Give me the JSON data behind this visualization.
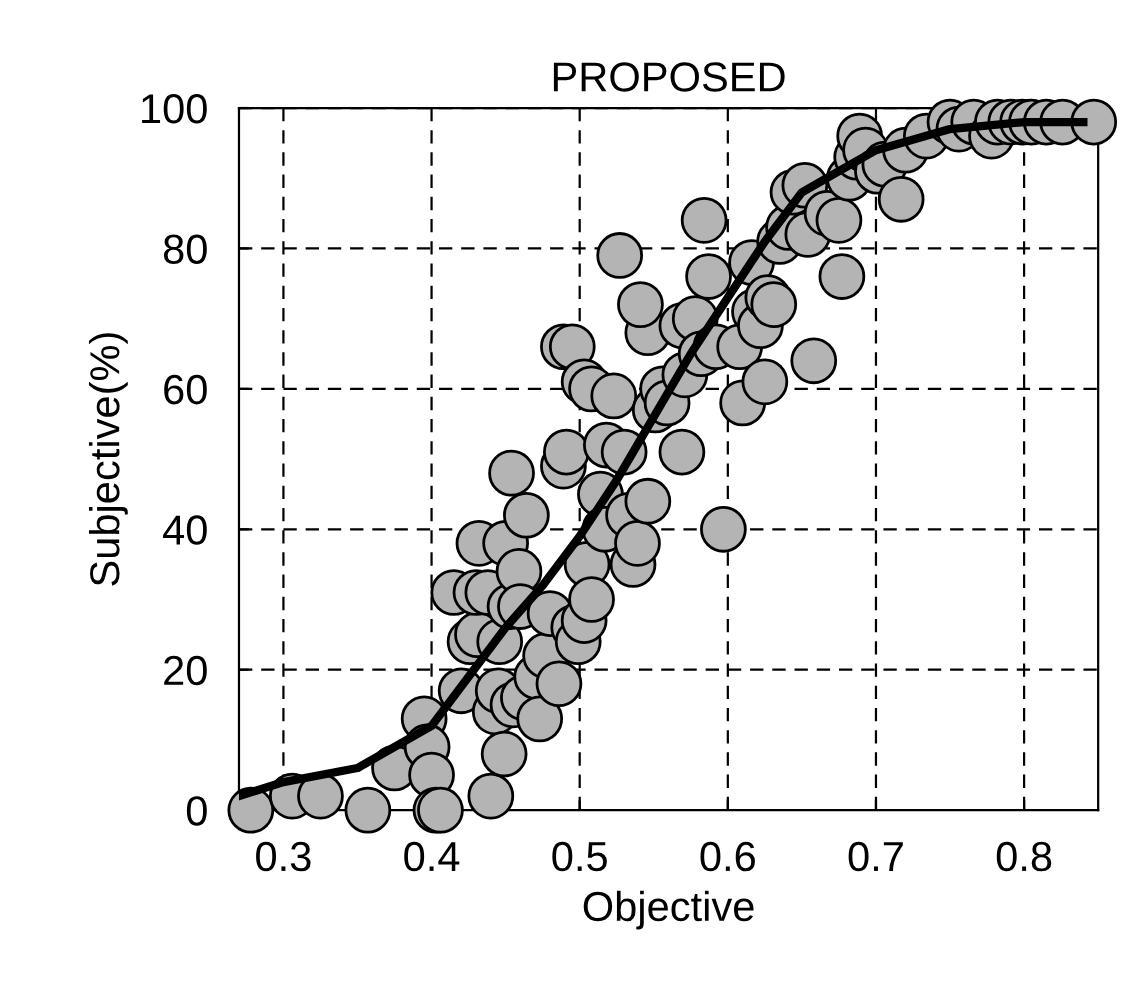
{
  "chart_data": {
    "type": "scatter",
    "title": "PROPOSED",
    "xlabel": "Objective",
    "ylabel": "Subjective(%)",
    "xlim": [
      0.27,
      0.85
    ],
    "ylim": [
      0,
      100
    ],
    "xticks": [
      0.3,
      0.4,
      0.5,
      0.6,
      0.7,
      0.8
    ],
    "yticks": [
      0,
      20,
      40,
      60,
      80,
      100
    ],
    "grid": true,
    "series": [
      {
        "marker": "circle",
        "color": "#b4b4b4",
        "x": [
          0.278,
          0.306,
          0.325,
          0.357,
          0.375,
          0.395,
          0.397,
          0.4,
          0.403,
          0.406,
          0.415,
          0.42,
          0.426,
          0.431,
          0.43,
          0.432,
          0.438,
          0.44,
          0.443,
          0.445,
          0.446,
          0.449,
          0.45,
          0.454,
          0.453,
          0.455,
          0.459,
          0.46,
          0.462,
          0.464,
          0.471,
          0.473,
          0.477,
          0.48,
          0.486,
          0.489,
          0.491,
          0.496,
          0.499,
          0.503,
          0.505,
          0.508,
          0.514,
          0.517,
          0.527,
          0.489,
          0.495,
          0.503,
          0.508,
          0.518,
          0.523,
          0.53,
          0.533,
          0.536,
          0.539,
          0.546,
          0.546,
          0.541,
          0.551,
          0.556,
          0.559,
          0.569,
          0.571,
          0.569,
          0.578,
          0.582,
          0.587,
          0.592,
          0.597,
          0.584,
          0.608,
          0.61,
          0.616,
          0.618,
          0.622,
          0.627,
          0.631,
          0.625,
          0.635,
          0.641,
          0.644,
          0.652,
          0.654,
          0.658,
          0.667,
          0.675,
          0.677,
          0.682,
          0.687,
          0.689,
          0.693,
          0.701,
          0.706,
          0.717,
          0.72,
          0.734,
          0.75,
          0.756,
          0.766,
          0.778,
          0.782,
          0.791,
          0.799,
          0.805,
          0.815,
          0.826,
          0.847
        ],
        "values": [
          0,
          2,
          2,
          0,
          6,
          13,
          9,
          5,
          0,
          0,
          31,
          17,
          24,
          25,
          31,
          38,
          31,
          2,
          14,
          17,
          24,
          8,
          38,
          48,
          29,
          15,
          34,
          29,
          16,
          42,
          19,
          13,
          22,
          28,
          18,
          49,
          51,
          26,
          24,
          27,
          35,
          30,
          45,
          40,
          79,
          66,
          66,
          61,
          60,
          52,
          59,
          51,
          42,
          35,
          38,
          44,
          68,
          72,
          57,
          60,
          58,
          51,
          62,
          69,
          70,
          65,
          76,
          66,
          40,
          84,
          66,
          58,
          78,
          71,
          69,
          73,
          72,
          61,
          81,
          83,
          88,
          89,
          82,
          64,
          85,
          84,
          76,
          90,
          93,
          96,
          94,
          91,
          92,
          87,
          94,
          96,
          98,
          97,
          98,
          96,
          98,
          98,
          98,
          98,
          98,
          98,
          98
        ]
      },
      {
        "type": "line",
        "marker": "none",
        "color": "#000000",
        "x": [
          0.27,
          0.3,
          0.35,
          0.4,
          0.425,
          0.45,
          0.475,
          0.5,
          0.525,
          0.55,
          0.575,
          0.6,
          0.625,
          0.65,
          0.675,
          0.7,
          0.75,
          0.8,
          0.84
        ],
        "values": [
          2,
          4,
          6,
          12,
          19,
          26,
          32,
          39,
          47,
          56,
          65,
          73,
          81,
          88,
          91,
          94,
          97,
          98,
          98
        ]
      }
    ]
  }
}
